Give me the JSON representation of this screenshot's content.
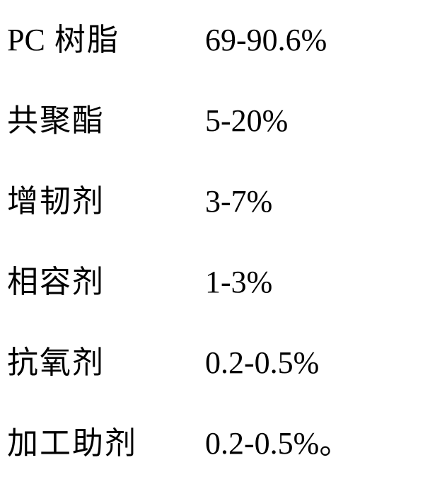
{
  "composition": {
    "rows": [
      {
        "label_prefix": "PC",
        "label_suffix": " 树脂",
        "value": "69-90.6%",
        "has_pc_prefix": true
      },
      {
        "label": "共聚酯",
        "value": "5-20%"
      },
      {
        "label": "增韧剂",
        "value": "3-7%"
      },
      {
        "label": "相容剂",
        "value": "1-3%"
      },
      {
        "label": "抗氧剂",
        "value": "0.2-0.5%"
      },
      {
        "label": "加工助剂",
        "value": "0.2-0.5%",
        "has_period": true,
        "period": "。"
      }
    ]
  },
  "styling": {
    "background_color": "#ffffff",
    "text_color": "#000000",
    "font_size": 44,
    "label_width": 280,
    "row_spacing": 50,
    "font_family_cn": "SimSun",
    "font_family_latin": "Times New Roman"
  }
}
